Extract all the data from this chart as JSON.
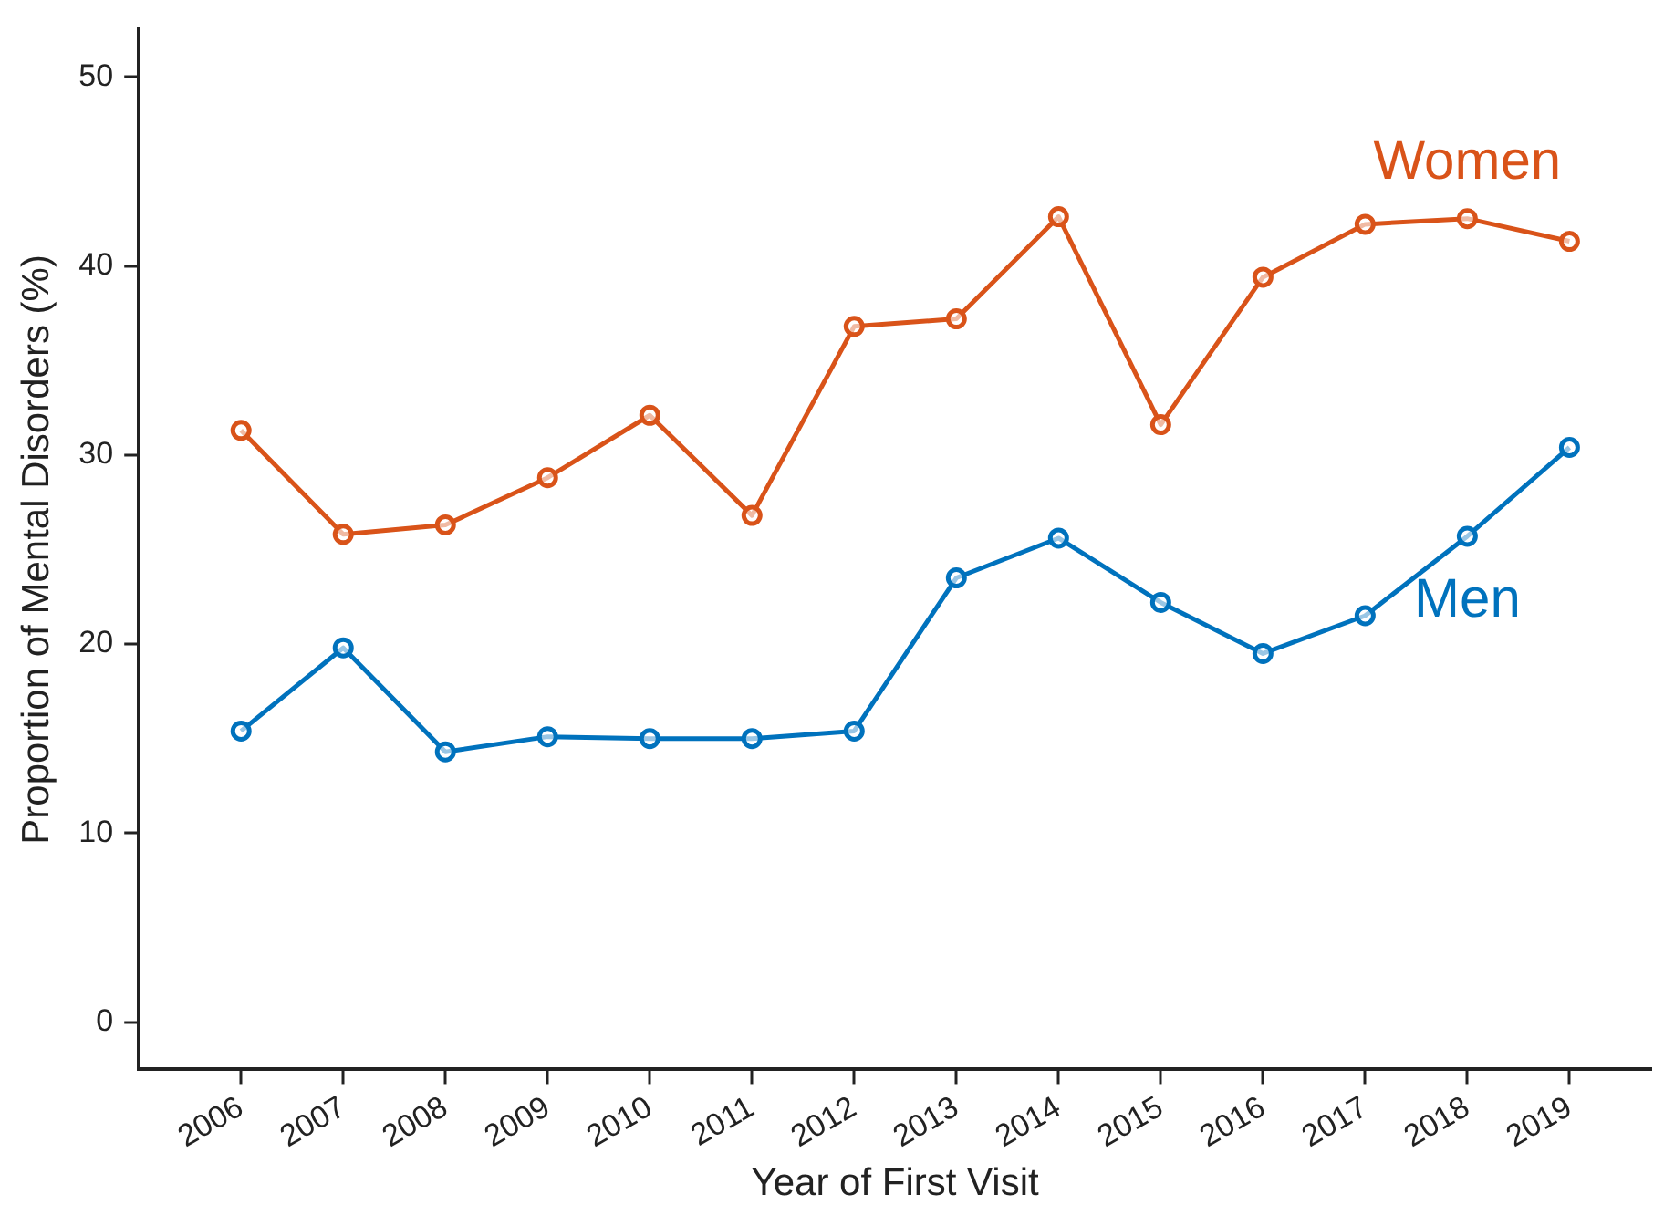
{
  "chart_data": {
    "type": "line",
    "xlabel": "Year of First Visit",
    "ylabel": "Proportion of Mental Disorders (%)",
    "categories": [
      "2006",
      "2007",
      "2008",
      "2009",
      "2010",
      "2011",
      "2012",
      "2013",
      "2014",
      "2015",
      "2016",
      "2017",
      "2018",
      "2019"
    ],
    "series": [
      {
        "name": "Women",
        "color": "#d95319",
        "values": [
          31.3,
          25.8,
          26.3,
          28.8,
          32.1,
          26.8,
          36.8,
          37.2,
          42.6,
          31.6,
          39.4,
          42.2,
          42.5,
          41.3
        ]
      },
      {
        "name": "Men",
        "color": "#0072bd",
        "values": [
          15.4,
          19.8,
          14.3,
          15.1,
          15.0,
          15.0,
          15.4,
          23.5,
          25.6,
          22.2,
          19.5,
          21.5,
          25.7,
          30.4
        ]
      }
    ],
    "ylim": [
      -2.5,
      52.5
    ],
    "yticks": [
      0,
      10,
      20,
      30,
      40,
      50
    ],
    "grid": false,
    "legend": false,
    "marker": "circle",
    "line_style": "solid"
  }
}
